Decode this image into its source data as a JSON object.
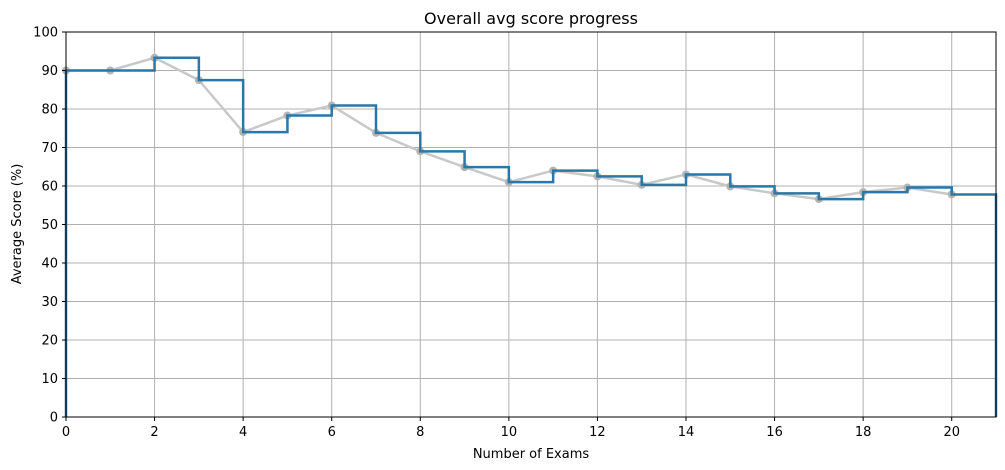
{
  "chart_data": {
    "type": "line",
    "title": "Overall avg score progress",
    "xlabel": "Number of Exams",
    "ylabel": "Average Score (%)",
    "xlim": [
      0,
      21
    ],
    "ylim": [
      0,
      100
    ],
    "x_ticks": [
      0,
      2,
      4,
      6,
      8,
      10,
      12,
      14,
      16,
      18,
      20
    ],
    "y_ticks": [
      0,
      10,
      20,
      30,
      40,
      50,
      60,
      70,
      80,
      90,
      100
    ],
    "grid": true,
    "legend": "none",
    "series": [
      {
        "style": "line-with-markers",
        "color": "#c8c8c8",
        "marker_color": "#b4b4b4",
        "x": [
          0,
          1,
          2,
          3,
          4,
          5,
          6,
          7,
          8,
          9,
          10,
          11,
          12,
          13,
          14,
          15,
          16,
          17,
          18,
          19,
          20
        ],
        "y": [
          90,
          90,
          93.3,
          87.5,
          74,
          78.3,
          80.9,
          73.8,
          69,
          64.9,
          61,
          64,
          62.5,
          60.3,
          63,
          59.9,
          58.1,
          56.6,
          58.4,
          59.6,
          57.8
        ]
      },
      {
        "style": "step",
        "color": "#2a77a8",
        "x": [
          0,
          1,
          2,
          3,
          4,
          5,
          6,
          7,
          8,
          9,
          10,
          11,
          12,
          13,
          14,
          15,
          16,
          17,
          18,
          19,
          20
        ],
        "y": [
          90,
          90,
          93.3,
          87.5,
          74,
          78.3,
          80.9,
          73.8,
          69,
          64.9,
          61,
          64,
          62.5,
          60.3,
          63,
          59.9,
          58.1,
          56.6,
          58.4,
          59.6,
          57.8
        ]
      }
    ]
  }
}
